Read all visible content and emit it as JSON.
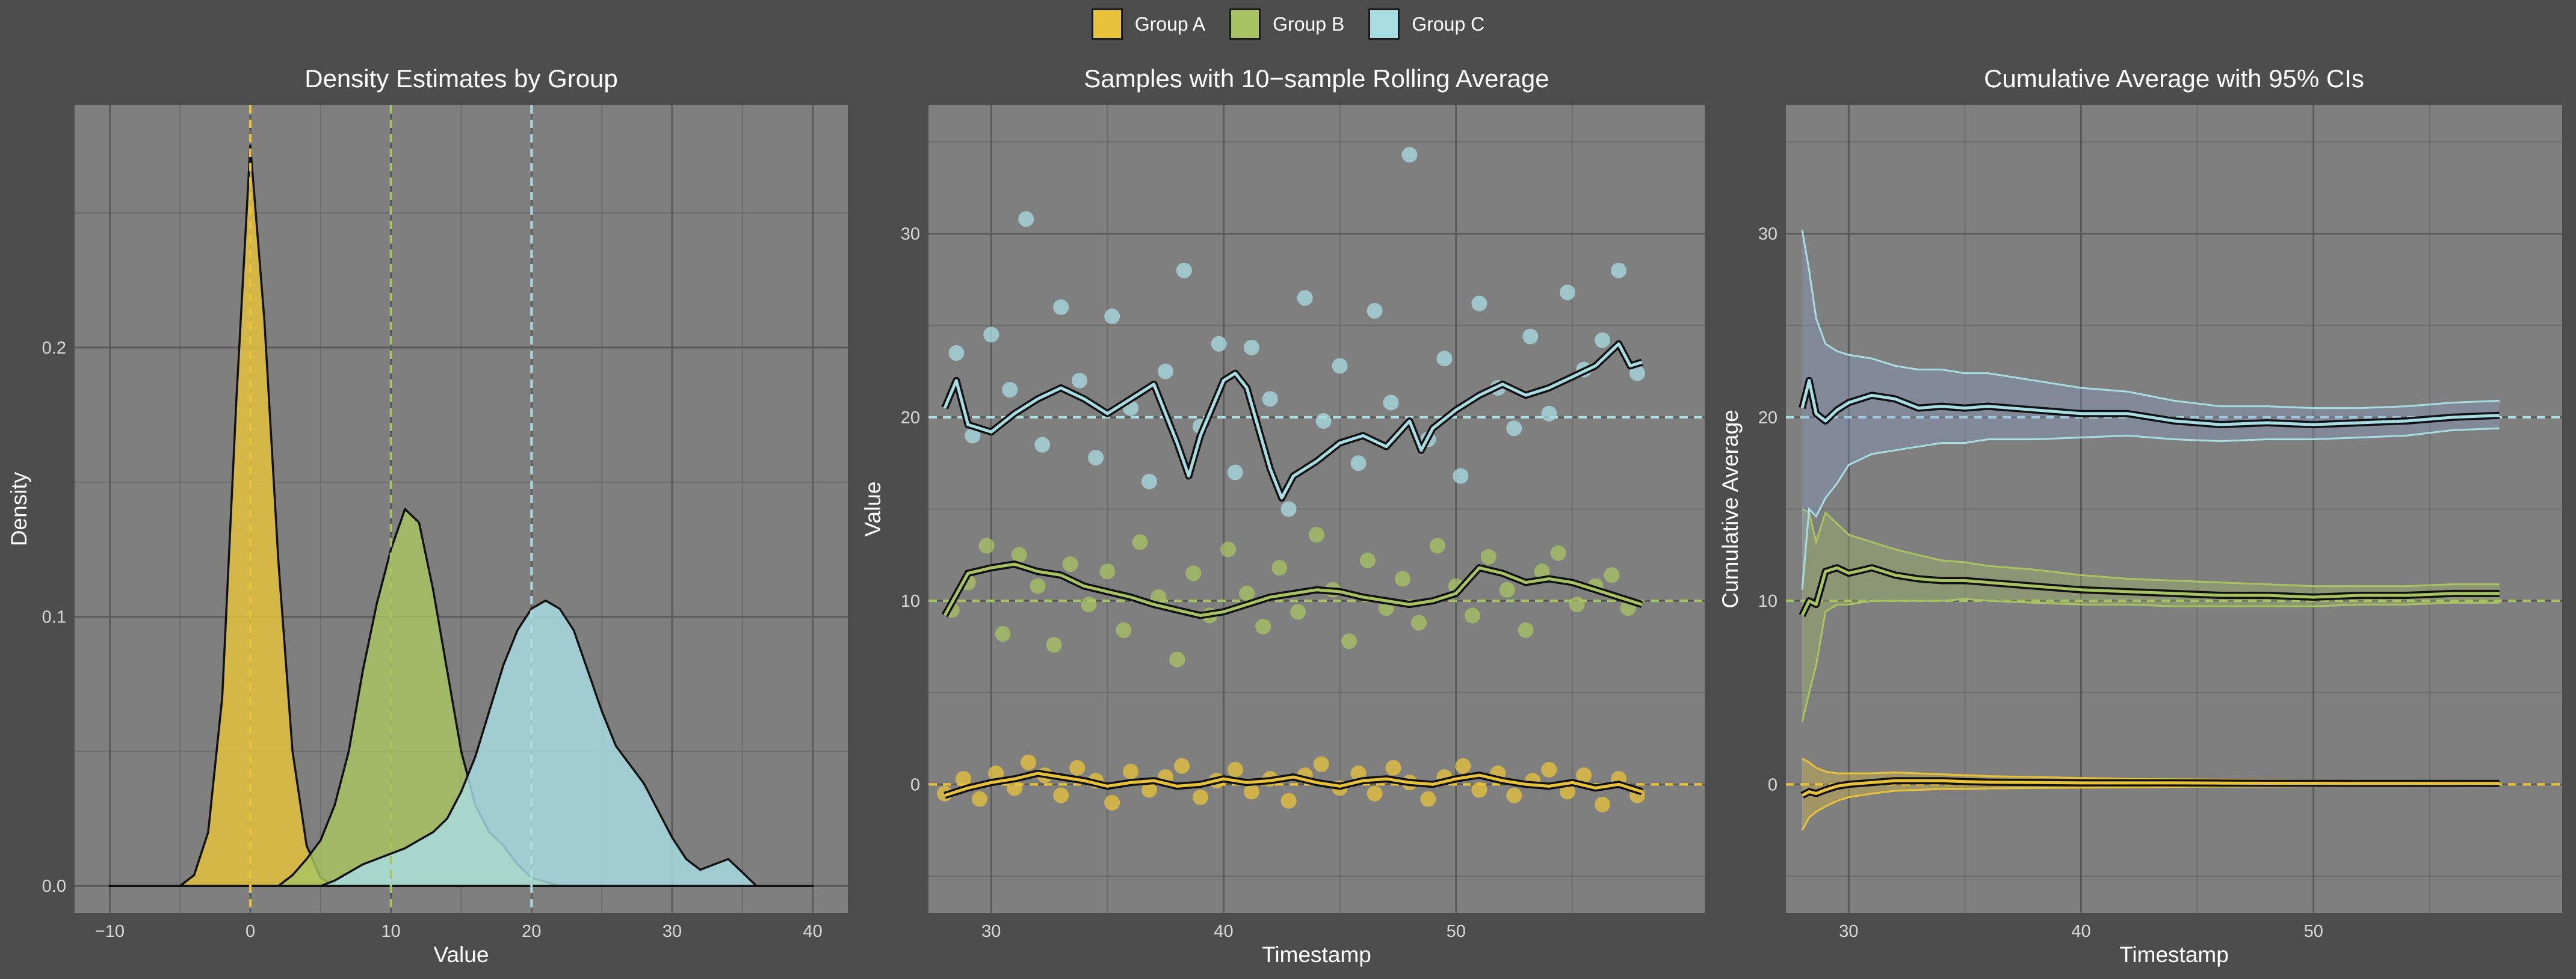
{
  "legend": {
    "items": [
      {
        "label": "Group A",
        "color": "#e8c33a"
      },
      {
        "label": "Group B",
        "color": "#a8c462"
      },
      {
        "label": "Group C",
        "color": "#a8dde3"
      }
    ]
  },
  "chart_data": [
    {
      "type": "area",
      "title": "Density Estimates by Group",
      "xlabel": "Value",
      "ylabel": "Density",
      "xlim": [
        -12.5,
        42.5
      ],
      "ylim": [
        -0.01,
        0.29
      ],
      "xticks": [
        -10,
        0,
        10,
        20,
        30,
        40
      ],
      "xtick_labels": [
        "−10",
        "0",
        "10",
        "20",
        "30",
        "40"
      ],
      "yticks": [
        0.0,
        0.1,
        0.2
      ],
      "ytick_labels": [
        "0.0",
        "0.1",
        "0.2"
      ],
      "grid": true,
      "reference_lines_x": [
        0,
        10,
        20
      ],
      "series": [
        {
          "name": "Group A",
          "color": "#e8c33a",
          "x": [
            -10,
            -5,
            -4,
            -3,
            -2,
            -1,
            0,
            1,
            2,
            3,
            4,
            5,
            6,
            7,
            40
          ],
          "y": [
            0,
            0,
            0.004,
            0.02,
            0.07,
            0.18,
            0.275,
            0.21,
            0.12,
            0.05,
            0.015,
            0.003,
            0,
            0,
            0
          ]
        },
        {
          "name": "Group B",
          "color": "#a8c462",
          "x": [
            -10,
            2,
            3,
            4,
            5,
            6,
            7,
            8,
            9,
            10,
            11,
            12,
            13,
            14,
            15,
            16,
            17,
            18,
            19,
            20,
            22,
            40
          ],
          "y": [
            0,
            0,
            0.004,
            0.01,
            0.017,
            0.03,
            0.05,
            0.08,
            0.105,
            0.125,
            0.14,
            0.135,
            0.11,
            0.08,
            0.05,
            0.03,
            0.02,
            0.015,
            0.008,
            0.003,
            0,
            0
          ]
        },
        {
          "name": "Group C",
          "color": "#a8dde3",
          "x": [
            -10,
            5,
            6,
            7,
            8,
            9,
            10,
            11,
            12,
            13,
            14,
            15,
            16,
            17,
            18,
            19,
            20,
            21,
            22,
            23,
            24,
            25,
            26,
            27,
            28,
            29,
            30,
            31,
            32,
            33,
            34,
            35,
            36,
            40
          ],
          "y": [
            0,
            0,
            0.002,
            0.005,
            0.008,
            0.01,
            0.012,
            0.014,
            0.017,
            0.02,
            0.025,
            0.035,
            0.048,
            0.065,
            0.082,
            0.095,
            0.103,
            0.106,
            0.103,
            0.095,
            0.08,
            0.065,
            0.052,
            0.045,
            0.038,
            0.028,
            0.018,
            0.01,
            0.006,
            0.008,
            0.01,
            0.005,
            0,
            0
          ]
        }
      ]
    },
    {
      "type": "scatter",
      "title": "Samples with 10−sample Rolling Average",
      "xlabel": "Timestamp",
      "ylabel": "Value",
      "xlim": [
        27.3,
        60.7
      ],
      "ylim": [
        -7,
        37
      ],
      "xticks": [
        30,
        40,
        50
      ],
      "xtick_labels": [
        "30",
        "40",
        "50"
      ],
      "yticks": [
        0,
        10,
        20,
        30
      ],
      "ytick_labels": [
        "0",
        "10",
        "20",
        "30"
      ],
      "grid": true,
      "reference_lines_y": [
        0,
        10,
        20
      ],
      "series": [
        {
          "name": "Group A",
          "color": "#e8c33a",
          "points_x": [
            28,
            28.8,
            29.5,
            30.2,
            31,
            31.6,
            32.3,
            33,
            33.7,
            34.5,
            35.2,
            36,
            36.8,
            37.5,
            38.2,
            39,
            39.7,
            40.5,
            41.2,
            42,
            42.8,
            43.5,
            44.2,
            45,
            45.8,
            46.5,
            47.3,
            48,
            48.8,
            49.5,
            50.3,
            51,
            51.8,
            52.5,
            53.3,
            54,
            54.8,
            55.5,
            56.3,
            57,
            57.8
          ],
          "points_y": [
            -0.5,
            0.3,
            -0.8,
            0.6,
            -0.2,
            1.2,
            0.5,
            -0.6,
            0.9,
            0.2,
            -1,
            0.7,
            -0.3,
            0.4,
            1,
            -0.7,
            0.2,
            0.8,
            -0.4,
            0.3,
            -0.9,
            0.5,
            1.1,
            -0.2,
            0.6,
            -0.5,
            0.9,
            0.1,
            -0.8,
            0.4,
            1,
            -0.3,
            0.6,
            -0.6,
            0.2,
            0.8,
            -0.4,
            0.5,
            -1.1,
            0.3,
            -0.6
          ],
          "line_x": [
            28,
            29,
            30,
            31,
            32,
            33,
            34,
            35,
            36,
            37,
            38,
            39,
            40,
            41,
            42,
            43,
            44,
            45,
            46,
            47,
            48,
            49,
            50,
            51,
            52,
            53,
            54,
            55,
            56,
            57,
            58
          ],
          "line_y": [
            -0.6,
            -0.2,
            0.1,
            0.3,
            0.6,
            0.4,
            0.2,
            -0.1,
            0.1,
            0.2,
            -0.1,
            0,
            0.3,
            0.1,
            0.2,
            0.4,
            0.1,
            -0.1,
            0.2,
            0.3,
            0.1,
            0,
            0.3,
            0.5,
            0.2,
            0,
            -0.1,
            0.1,
            -0.2,
            0,
            -0.4
          ]
        },
        {
          "name": "Group B",
          "color": "#a8c462",
          "points_x": [
            28.3,
            29,
            29.8,
            30.5,
            31.2,
            32,
            32.7,
            33.4,
            34.2,
            35,
            35.7,
            36.4,
            37.2,
            38,
            38.7,
            39.4,
            40.2,
            41,
            41.7,
            42.4,
            43.2,
            44,
            44.7,
            45.4,
            46.2,
            47,
            47.7,
            48.4,
            49.2,
            50,
            50.7,
            51.4,
            52.2,
            53,
            53.7,
            54.4,
            55.2,
            56,
            56.7,
            57.4
          ],
          "points_y": [
            9.5,
            11,
            13,
            8.2,
            12.5,
            10.8,
            7.6,
            12,
            9.8,
            11.6,
            8.4,
            13.2,
            10.2,
            6.8,
            11.5,
            9.2,
            12.8,
            10.4,
            8.6,
            11.8,
            9.4,
            13.6,
            10.6,
            7.8,
            12.2,
            9.6,
            11.2,
            8.8,
            13,
            10.8,
            9.2,
            12.4,
            10.6,
            8.4,
            11.6,
            12.6,
            9.8,
            10.8,
            11.4,
            9.6
          ],
          "line_x": [
            28,
            29,
            30,
            31,
            32,
            33,
            34,
            35,
            36,
            37,
            38,
            39,
            40,
            41,
            42,
            43,
            44,
            45,
            46,
            47,
            48,
            49,
            50,
            51,
            52,
            53,
            54,
            55,
            56,
            57,
            58
          ],
          "line_y": [
            9.2,
            11.5,
            11.8,
            12,
            11.6,
            11.4,
            10.8,
            10.5,
            10.2,
            9.8,
            9.5,
            9.2,
            9.4,
            9.8,
            10.2,
            10.4,
            10.6,
            10.5,
            10.2,
            10,
            9.8,
            10,
            10.4,
            11.8,
            11.5,
            11,
            11.2,
            11,
            10.6,
            10.2,
            9.8
          ]
        },
        {
          "name": "Group C",
          "color": "#a8dde3",
          "points_x": [
            28.5,
            29.2,
            30,
            30.8,
            31.5,
            32.2,
            33,
            33.8,
            34.5,
            35.2,
            36,
            36.8,
            37.5,
            38.3,
            39,
            39.8,
            40.5,
            41.2,
            42,
            42.8,
            43.5,
            44.3,
            45,
            45.8,
            46.5,
            47.2,
            48,
            48.8,
            49.5,
            50.2,
            51,
            51.8,
            52.5,
            53.2,
            54,
            54.8,
            55.5,
            56.3,
            57,
            57.8
          ],
          "points_y": [
            23.5,
            19,
            24.5,
            21.5,
            30.8,
            18.5,
            26,
            22,
            17.8,
            25.5,
            20.5,
            16.5,
            22.5,
            28,
            19.5,
            24,
            17,
            23.8,
            21,
            15,
            26.5,
            19.8,
            22.8,
            17.5,
            25.8,
            20.8,
            34.3,
            18.8,
            23.2,
            16.8,
            26.2,
            21.6,
            19.4,
            24.4,
            20.2,
            26.8,
            22.6,
            24.2,
            28,
            22.4
          ],
          "line_x": [
            28,
            28.5,
            29,
            30,
            31,
            32,
            33,
            34,
            35,
            36,
            37,
            38,
            38.5,
            39,
            40,
            40.5,
            41,
            42,
            42.5,
            43,
            44,
            45,
            46,
            47,
            48,
            48.5,
            49,
            50,
            51,
            52,
            53,
            54,
            55,
            56,
            57,
            57.5,
            58
          ],
          "line_y": [
            20.5,
            22,
            19.6,
            19.2,
            20.2,
            21,
            21.6,
            21,
            20.2,
            21,
            21.8,
            18.6,
            16.8,
            19,
            22,
            22.4,
            21.6,
            17.2,
            15.6,
            16.8,
            17.6,
            18.6,
            19,
            18.4,
            19.8,
            18.2,
            19.4,
            20.4,
            21.2,
            21.8,
            21.2,
            21.6,
            22.2,
            22.8,
            24,
            22.8,
            23
          ]
        }
      ]
    },
    {
      "type": "line",
      "title": "Cumulative Average with 95% CIs",
      "xlabel": "Timestamp",
      "ylabel": "Cumulative Average",
      "xlim": [
        27.3,
        60.7
      ],
      "ylim": [
        -7,
        37
      ],
      "xticks": [
        30,
        40,
        50
      ],
      "xtick_labels": [
        "30",
        "40",
        "50"
      ],
      "yticks": [
        0,
        10,
        20,
        30
      ],
      "ytick_labels": [
        "0",
        "10",
        "20",
        "30"
      ],
      "grid": true,
      "reference_lines_y": [
        0,
        10,
        20
      ],
      "series": [
        {
          "name": "Group A",
          "color": "#e8c33a",
          "x": [
            28,
            28.3,
            28.6,
            29,
            29.5,
            30,
            31,
            32,
            33,
            34,
            35,
            36,
            38,
            40,
            42,
            44,
            46,
            48,
            50,
            52,
            54,
            56,
            58
          ],
          "mean": [
            -0.6,
            -0.4,
            -0.5,
            -0.3,
            -0.1,
            0,
            0.1,
            0.2,
            0.2,
            0.2,
            0.15,
            0.12,
            0.1,
            0.08,
            0.08,
            0.08,
            0.07,
            0.06,
            0.06,
            0.05,
            0.05,
            0.05,
            0.05
          ],
          "lower": [
            -2.5,
            -1.8,
            -1.5,
            -1.2,
            -0.9,
            -0.7,
            -0.5,
            -0.35,
            -0.3,
            -0.25,
            -0.25,
            -0.22,
            -0.2,
            -0.18,
            -0.16,
            -0.14,
            -0.12,
            -0.12,
            -0.1,
            -0.1,
            -0.1,
            -0.1,
            -0.08
          ],
          "upper": [
            1.4,
            1.2,
            0.9,
            0.7,
            0.6,
            0.6,
            0.6,
            0.65,
            0.6,
            0.55,
            0.5,
            0.45,
            0.4,
            0.35,
            0.3,
            0.28,
            0.26,
            0.24,
            0.22,
            0.2,
            0.2,
            0.18,
            0.18
          ]
        },
        {
          "name": "Group B",
          "color": "#a8c462",
          "x": [
            28,
            28.3,
            28.6,
            29,
            29.5,
            30,
            31,
            32,
            33,
            34,
            35,
            36,
            38,
            40,
            42,
            44,
            46,
            48,
            50,
            52,
            54,
            56,
            58
          ],
          "mean": [
            9.2,
            10,
            9.8,
            11.6,
            11.8,
            11.5,
            11.8,
            11.4,
            11.2,
            11.1,
            11.1,
            11,
            10.8,
            10.6,
            10.5,
            10.4,
            10.3,
            10.3,
            10.2,
            10.3,
            10.3,
            10.4,
            10.4
          ],
          "lower": [
            3.4,
            5,
            6.5,
            9.4,
            9.8,
            9.8,
            10,
            10,
            10,
            10,
            10.1,
            10,
            9.9,
            9.8,
            9.8,
            9.7,
            9.7,
            9.7,
            9.7,
            9.8,
            9.8,
            9.9,
            9.9
          ],
          "upper": [
            15,
            14.8,
            13.2,
            14.8,
            14.2,
            13.6,
            13.2,
            12.8,
            12.5,
            12.2,
            12.1,
            11.9,
            11.7,
            11.4,
            11.2,
            11.1,
            11,
            10.9,
            10.8,
            10.8,
            10.8,
            10.9,
            10.9
          ]
        },
        {
          "name": "Group C",
          "color": "#a8dde3",
          "x": [
            28,
            28.3,
            28.6,
            29,
            29.5,
            30,
            31,
            32,
            33,
            34,
            35,
            36,
            38,
            40,
            42,
            44,
            46,
            48,
            50,
            52,
            54,
            56,
            58
          ],
          "mean": [
            20.5,
            22,
            20.2,
            19.8,
            20.4,
            20.8,
            21.2,
            21,
            20.5,
            20.6,
            20.5,
            20.6,
            20.4,
            20.2,
            20.2,
            19.8,
            19.6,
            19.7,
            19.6,
            19.7,
            19.8,
            20,
            20.1
          ],
          "lower": [
            10.6,
            15,
            14.6,
            15.6,
            16.4,
            17.4,
            18,
            18.2,
            18.4,
            18.6,
            18.6,
            18.8,
            18.8,
            18.9,
            19,
            18.8,
            18.7,
            18.8,
            18.8,
            18.9,
            19,
            19.3,
            19.4
          ],
          "upper": [
            30.2,
            28,
            25.4,
            24,
            23.6,
            23.4,
            23.2,
            22.8,
            22.6,
            22.6,
            22.4,
            22.4,
            22,
            21.6,
            21.4,
            20.9,
            20.6,
            20.6,
            20.5,
            20.5,
            20.6,
            20.8,
            20.9
          ]
        }
      ]
    }
  ]
}
